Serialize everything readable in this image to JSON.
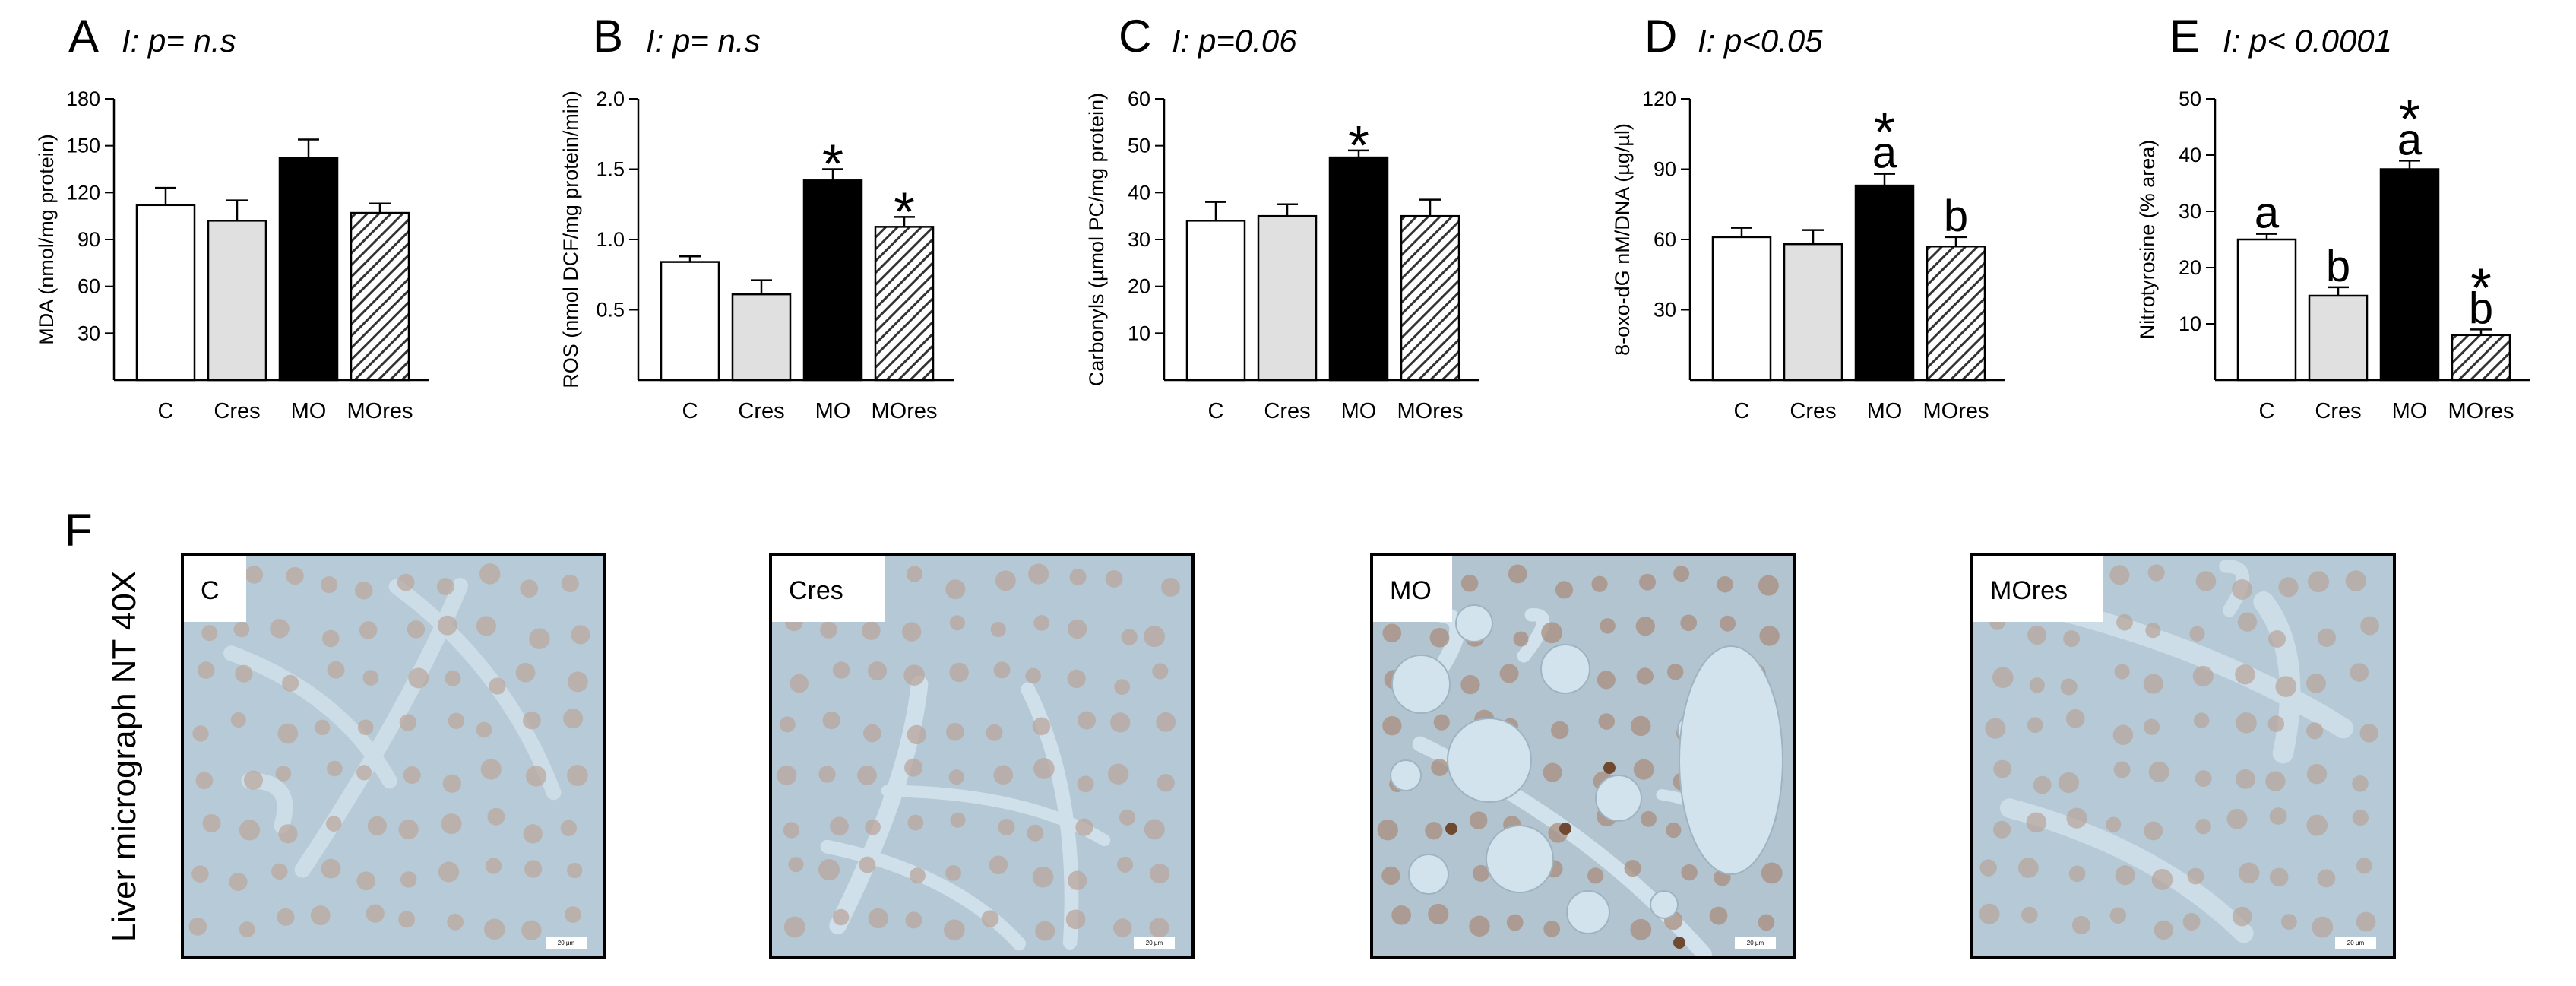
{
  "chart_data": [
    {
      "type": "bar",
      "panel": "A",
      "title": "I: p= n.s",
      "ylabel": "MDA (nmol/mg protein)",
      "ylim": [
        0,
        180
      ],
      "yticks": [
        "30",
        "60",
        "90",
        "120",
        "150",
        "180"
      ],
      "categories": [
        "C",
        "Cres",
        "MO",
        "MOres"
      ],
      "values": [
        112,
        102,
        142,
        107
      ],
      "errors": [
        11,
        13,
        12,
        6
      ],
      "annotations": [
        [],
        [],
        [],
        []
      ],
      "grid": false,
      "legend": "none"
    },
    {
      "type": "bar",
      "panel": "B",
      "title": "I: p= n.s",
      "ylabel": "ROS (nmol DCF/mg protein/min)",
      "ylim": [
        0,
        2.0
      ],
      "yticks": [
        "0.5",
        "1.0",
        "1.5",
        "2.0"
      ],
      "categories": [
        "C",
        "Cres",
        "MO",
        "MOres"
      ],
      "values": [
        0.84,
        0.61,
        1.42,
        1.09
      ],
      "errors": [
        0.04,
        0.1,
        0.08,
        0.07
      ],
      "annotations": [
        [],
        [],
        [
          "*"
        ],
        [
          "*"
        ]
      ],
      "grid": false,
      "legend": "none"
    },
    {
      "type": "bar",
      "panel": "C",
      "title": "I: p=0.06",
      "ylabel": "Carbonyls (µmol PC/mg protein)",
      "ylim": [
        0,
        60
      ],
      "yticks": [
        "10",
        "20",
        "30",
        "40",
        "50",
        "60"
      ],
      "categories": [
        "C",
        "Cres",
        "MO",
        "MOres"
      ],
      "values": [
        34,
        35,
        47.5,
        35
      ],
      "errors": [
        4,
        2.5,
        1.5,
        3.5
      ],
      "annotations": [
        [],
        [],
        [
          "*"
        ],
        []
      ],
      "grid": false,
      "legend": "none"
    },
    {
      "type": "bar",
      "panel": "D",
      "title": "I: p<0.05",
      "ylabel": "8-oxo-dG nM/DNA (µg/µl)",
      "ylim": [
        0,
        120
      ],
      "yticks": [
        "30",
        "60",
        "90",
        "120"
      ],
      "categories": [
        "C",
        "Cres",
        "MO",
        "MOres"
      ],
      "values": [
        61,
        58,
        83,
        57
      ],
      "errors": [
        4,
        6,
        5,
        4
      ],
      "annotations": [
        [],
        [],
        [
          "*",
          "a"
        ],
        [
          "b"
        ]
      ],
      "grid": false,
      "legend": "none"
    },
    {
      "type": "bar",
      "panel": "E",
      "title": "I: p< 0.0001",
      "ylabel": "Nitrotyrosine (% area)",
      "ylim": [
        0,
        50
      ],
      "yticks": [
        "10",
        "20",
        "30",
        "40",
        "50"
      ],
      "categories": [
        "C",
        "Cres",
        "MO",
        "MOres"
      ],
      "values": [
        25,
        15,
        37.5,
        8
      ],
      "errors": [
        1,
        1.5,
        1.5,
        1
      ],
      "annotations": [
        [
          "a"
        ],
        [
          "b"
        ],
        [
          "*",
          "a"
        ],
        [
          "*",
          "b"
        ]
      ],
      "grid": false,
      "legend": "none"
    }
  ],
  "bar_fills": [
    "#ffffff",
    "#e0e0e0",
    "#000000",
    "hatch"
  ],
  "micrographs": {
    "panel": "F",
    "side_label": "Liver micrograph NT 40X",
    "tiles": [
      {
        "label": "C",
        "tissue": "#b6cad7",
        "nuclei": "#bba89f",
        "vessel": "#ccdde7"
      },
      {
        "label": "Cres",
        "tissue": "#b4c8d5",
        "nuclei": "#b9a59c",
        "vessel": "#cfe0ea"
      },
      {
        "label": "MO",
        "tissue": "#b2c4cf",
        "nuclei": "#a88e7e",
        "vessel": "#d2e2ec"
      },
      {
        "label": "MOres",
        "tissue": "#b5c9d6",
        "nuclei": "#b8a69d",
        "vessel": "#cddde8"
      }
    ],
    "scale_bar": "20 µm"
  }
}
